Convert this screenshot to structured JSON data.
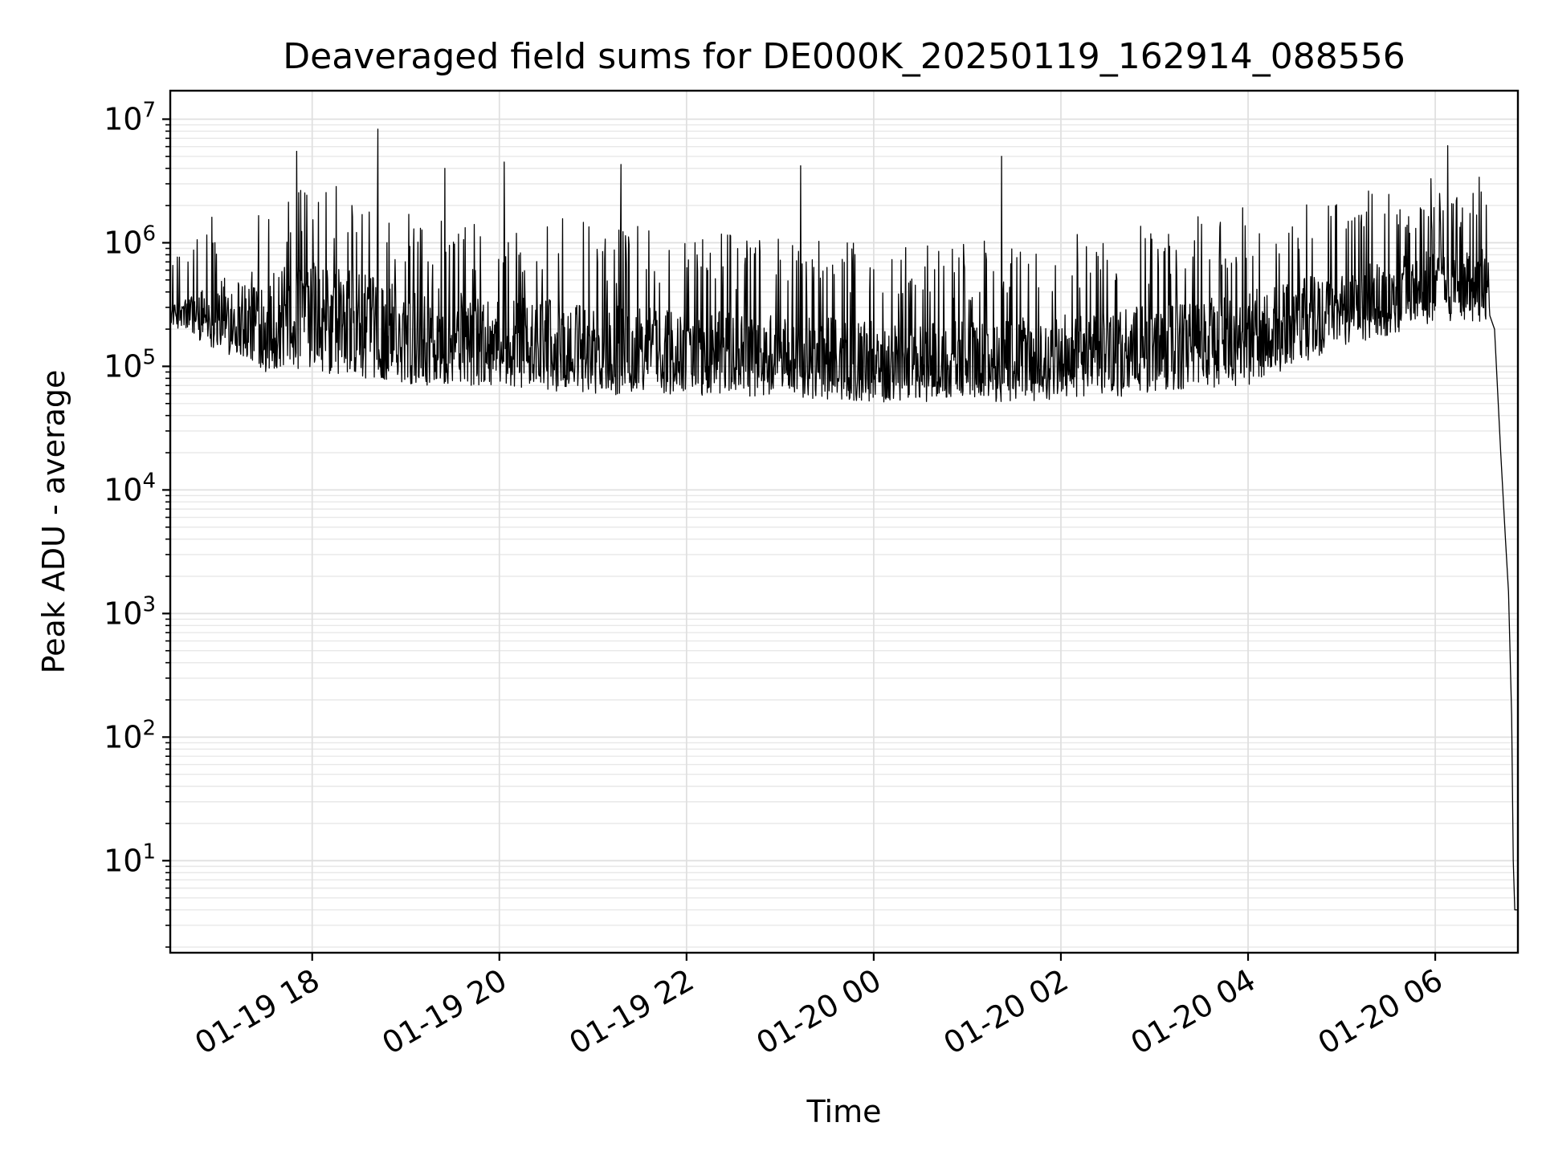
{
  "chart_data": {
    "type": "line",
    "title": "Deaveraged field sums for DE000K_20250119_162914_088556",
    "xlabel": "Time",
    "ylabel": "Peak ADU - average",
    "yscale": "log",
    "grid": true,
    "grid_which": "both",
    "legend": "none",
    "xlim": [
      "01-19 16:29",
      "01-20 06:53"
    ],
    "ylim": [
      1.8,
      17000000
    ],
    "x_ticks": [
      "01-19 18",
      "01-19 20",
      "01-19 22",
      "01-20 00",
      "01-20 02",
      "01-20 04",
      "01-20 06"
    ],
    "y_ticks": [
      {
        "base": "10",
        "exp": "1",
        "value": 10
      },
      {
        "base": "10",
        "exp": "2",
        "value": 100
      },
      {
        "base": "10",
        "exp": "3",
        "value": 1000
      },
      {
        "base": "10",
        "exp": "4",
        "value": 10000
      },
      {
        "base": "10",
        "exp": "5",
        "value": 100000
      },
      {
        "base": "10",
        "exp": "6",
        "value": 1000000
      },
      {
        "base": "10",
        "exp": "7",
        "value": 10000000
      }
    ],
    "series": [
      {
        "color": "#000000",
        "baseline_profile": {
          "description_of_trend": "noisy baseline in data units, with spikes; sharp drop at end",
          "points": [
            {
              "x": "01-19 16:29",
              "low": 350000,
              "high": 600000
            },
            {
              "x": "01-19 17:00",
              "low": 150000,
              "high": 1500000
            },
            {
              "x": "01-19 17:30",
              "low": 90000,
              "high": 2000000
            },
            {
              "x": "01-19 18:00",
              "low": 80000,
              "high": 2500000
            },
            {
              "x": "01-19 19:00",
              "low": 70000,
              "high": 1500000
            },
            {
              "x": "01-19 20:00",
              "low": 70000,
              "high": 1200000
            },
            {
              "x": "01-19 21:00",
              "low": 60000,
              "high": 1000000
            },
            {
              "x": "01-19 22:00",
              "low": 60000,
              "high": 900000
            },
            {
              "x": "01-19 23:00",
              "low": 60000,
              "high": 800000
            },
            {
              "x": "01-20 00:00",
              "low": 55000,
              "high": 700000
            },
            {
              "x": "01-20 01:00",
              "low": 55000,
              "high": 700000
            },
            {
              "x": "01-20 02:00",
              "low": 55000,
              "high": 800000
            },
            {
              "x": "01-20 03:00",
              "low": 60000,
              "high": 1000000
            },
            {
              "x": "01-20 04:00",
              "low": 70000,
              "high": 1300000
            },
            {
              "x": "01-20 05:00",
              "low": 150000,
              "high": 1800000
            },
            {
              "x": "01-20 06:00",
              "low": 250000,
              "high": 2500000
            },
            {
              "x": "01-20 06:35",
              "low": 250000,
              "high": 2500000
            }
          ],
          "tail": [
            {
              "x": "01-20 06:38",
              "y": 200000
            },
            {
              "x": "01-20 06:42",
              "y": 20000
            },
            {
              "x": "01-20 06:45",
              "y": 4000
            },
            {
              "x": "01-20 06:47",
              "y": 1500
            },
            {
              "x": "01-20 06:49",
              "y": 150
            },
            {
              "x": "01-20 06:50",
              "y": 10
            },
            {
              "x": "01-20 06:51",
              "y": 4
            },
            {
              "x": "01-20 06:53",
              "y": 4
            }
          ]
        },
        "notable_spikes": [
          {
            "x": "01-19 17:50",
            "y": 5500000
          },
          {
            "x": "01-19 18:42",
            "y": 8300000
          },
          {
            "x": "01-19 19:25",
            "y": 4000000
          },
          {
            "x": "01-19 20:03",
            "y": 4500000
          },
          {
            "x": "01-19 21:18",
            "y": 4300000
          },
          {
            "x": "01-19 23:13",
            "y": 4200000
          },
          {
            "x": "01-20 01:22",
            "y": 5000000
          },
          {
            "x": "01-20 06:08",
            "y": 6100000
          }
        ]
      }
    ]
  }
}
